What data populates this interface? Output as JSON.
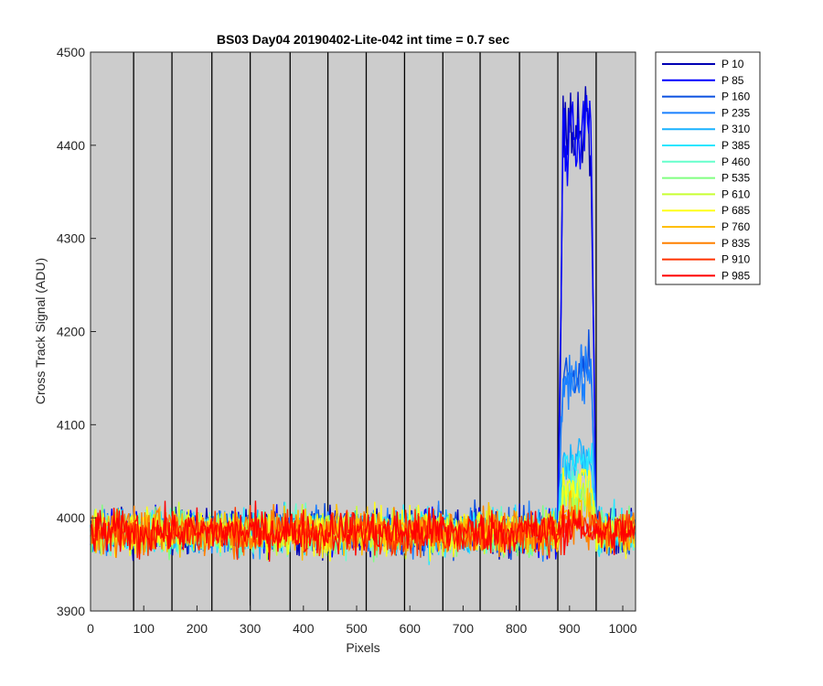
{
  "chart_data": {
    "type": "line",
    "title": "BS03 Day04 20190402-Lite-042 int time = 0.7 sec",
    "xlabel": "Pixels",
    "ylabel": "Cross Track Signal (ADU)",
    "xlim": [
      0,
      1024
    ],
    "ylim": [
      3900,
      4500
    ],
    "xticks": [
      0,
      100,
      200,
      300,
      400,
      500,
      600,
      700,
      800,
      900,
      1000
    ],
    "yticks": [
      3900,
      4000,
      4100,
      4200,
      4300,
      4400,
      4500
    ],
    "grid": false,
    "axes_background": "#cccccc",
    "vertical_lines": [
      81,
      153,
      228,
      300,
      375,
      446,
      518,
      590,
      662,
      732,
      806,
      878,
      950
    ],
    "legend_position": "outside-right-top",
    "baseline": 3985,
    "noise_amplitude": 12,
    "bump": {
      "x_start": 878,
      "x_end": 950,
      "center": 915
    },
    "series": [
      {
        "name": "P 10",
        "color": "#0000b3",
        "peak": 4430
      },
      {
        "name": "P 85",
        "color": "#0000ff",
        "peak": 4430
      },
      {
        "name": "P 160",
        "color": "#0a4fe0",
        "peak": 4165
      },
      {
        "name": "P 235",
        "color": "#1a80ff",
        "peak": 4160
      },
      {
        "name": "P 310",
        "color": "#1ab2ff",
        "peak": 4070
      },
      {
        "name": "P 385",
        "color": "#26e6ff",
        "peak": 4060
      },
      {
        "name": "P 460",
        "color": "#66ffcc",
        "peak": 4035
      },
      {
        "name": "P 535",
        "color": "#80ff80",
        "peak": 4025
      },
      {
        "name": "P 610",
        "color": "#c8ff33",
        "peak": 4020
      },
      {
        "name": "P 685",
        "color": "#ffff1a",
        "peak": 4040
      },
      {
        "name": "P 760",
        "color": "#ffbf00",
        "peak": 4005
      },
      {
        "name": "P 835",
        "color": "#ff8000",
        "peak": 3995
      },
      {
        "name": "P 910",
        "color": "#ff3300",
        "peak": 3992
      },
      {
        "name": "P 985",
        "color": "#ff0000",
        "peak": 3990
      }
    ]
  }
}
